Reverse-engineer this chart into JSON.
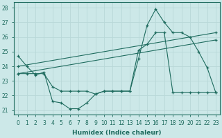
{
  "xlabel": "Humidex (Indice chaleur)",
  "bg_color": "#cce8e8",
  "line_color": "#1e6b5e",
  "grid_color": "#b8d8d8",
  "xlim": [
    -0.5,
    23.5
  ],
  "ylim": [
    20.7,
    28.4
  ],
  "yticks": [
    21,
    22,
    23,
    24,
    25,
    26,
    27,
    28
  ],
  "xticks": [
    0,
    1,
    2,
    3,
    4,
    5,
    6,
    7,
    8,
    9,
    10,
    11,
    12,
    13,
    14,
    15,
    16,
    17,
    18,
    19,
    20,
    21,
    22,
    23
  ],
  "line1_x": [
    0,
    1,
    2,
    3,
    4,
    5,
    6,
    7,
    8,
    9,
    10,
    11,
    12,
    13,
    14,
    15,
    16,
    17,
    18,
    19,
    20,
    21,
    22,
    23
  ],
  "line1_y": [
    24.7,
    24.0,
    23.4,
    23.6,
    21.6,
    21.5,
    21.1,
    21.1,
    21.5,
    22.1,
    22.3,
    22.3,
    22.3,
    22.3,
    24.5,
    26.8,
    27.9,
    27.0,
    26.3,
    26.3,
    26.0,
    25.0,
    23.9,
    22.2
  ],
  "line2_x": [
    0,
    1,
    2,
    3,
    4,
    5,
    6,
    7,
    8,
    9,
    10,
    11,
    12,
    13,
    14,
    15,
    16,
    17,
    18,
    19,
    20,
    21,
    22,
    23
  ],
  "line2_y": [
    23.5,
    23.5,
    23.5,
    23.5,
    22.6,
    22.3,
    22.3,
    22.3,
    22.3,
    22.1,
    22.3,
    22.3,
    22.3,
    22.3,
    25.1,
    25.5,
    26.3,
    26.3,
    22.2,
    22.2,
    22.2,
    22.2,
    22.2,
    22.2
  ],
  "line3_x": [
    0,
    23
  ],
  "line3_y": [
    24.0,
    26.3
  ],
  "line4_x": [
    0,
    23
  ],
  "line4_y": [
    23.5,
    25.8
  ]
}
